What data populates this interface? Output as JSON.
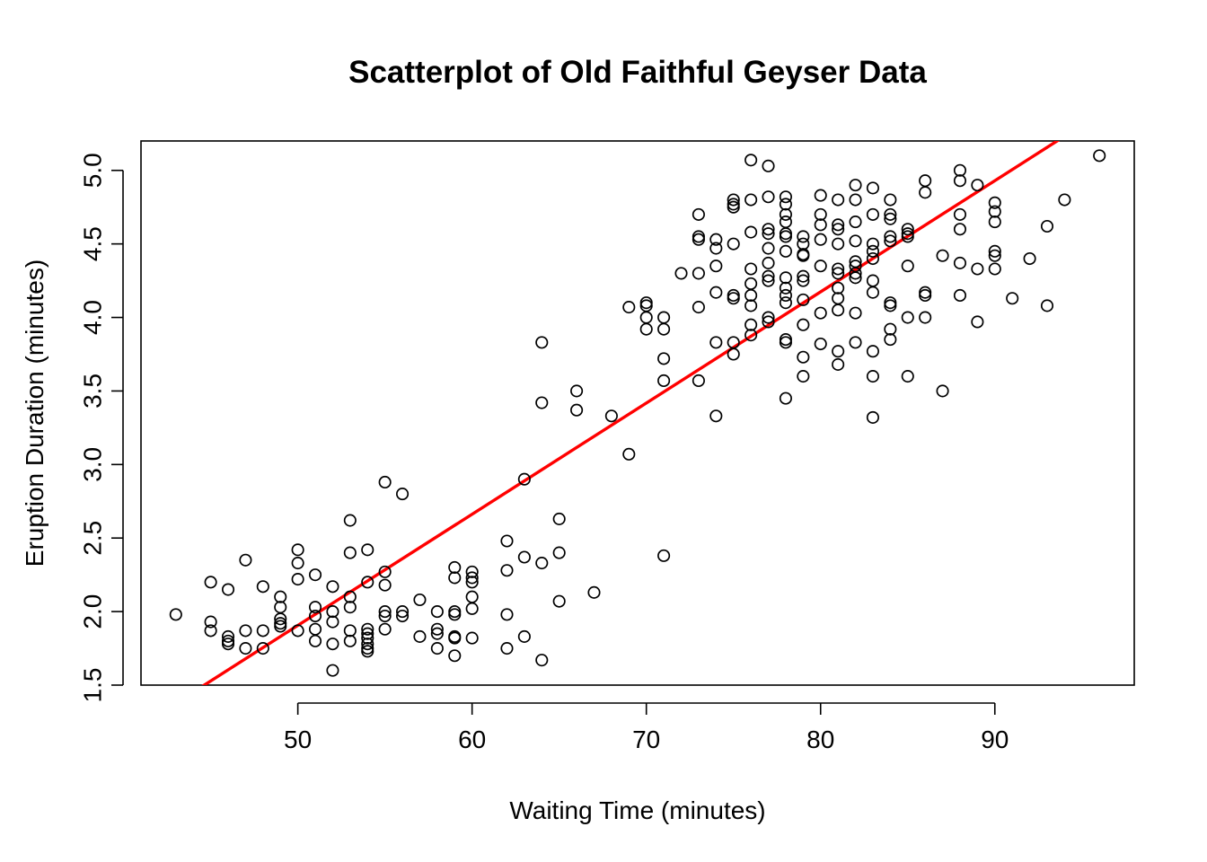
{
  "chart_data": {
    "type": "scatter",
    "title": "Scatterplot of Old Faithful Geyser Data",
    "xlabel": "Waiting Time (minutes)",
    "ylabel": "Eruption Duration (minutes)",
    "xlim": [
      41,
      98
    ],
    "ylim": [
      1.5,
      5.2
    ],
    "x_ticks": [
      50,
      60,
      70,
      80,
      90
    ],
    "x_tick_labels": [
      "50",
      "60",
      "70",
      "80",
      "90"
    ],
    "y_ticks": [
      1.5,
      2.0,
      2.5,
      3.0,
      3.5,
      4.0,
      4.5,
      5.0
    ],
    "y_tick_labels": [
      "1.5",
      "2.0",
      "2.5",
      "3.0",
      "3.5",
      "4.0",
      "4.5",
      "5.0"
    ],
    "grid": false,
    "regression_line": {
      "intercept": -1.874,
      "slope": 0.0756,
      "color": "#ff0000"
    },
    "points": [
      [
        43,
        1.98
      ],
      [
        45,
        2.2
      ],
      [
        45,
        1.93
      ],
      [
        45,
        1.87
      ],
      [
        46,
        2.15
      ],
      [
        46,
        1.83
      ],
      [
        46,
        1.8
      ],
      [
        46,
        1.78
      ],
      [
        47,
        2.35
      ],
      [
        47,
        1.87
      ],
      [
        47,
        1.75
      ],
      [
        48,
        2.17
      ],
      [
        48,
        1.87
      ],
      [
        48,
        1.75
      ],
      [
        49,
        2.1
      ],
      [
        49,
        2.03
      ],
      [
        49,
        1.95
      ],
      [
        49,
        1.92
      ],
      [
        49,
        1.9
      ],
      [
        50,
        2.42
      ],
      [
        50,
        2.33
      ],
      [
        50,
        2.22
      ],
      [
        50,
        1.87
      ],
      [
        51,
        2.25
      ],
      [
        51,
        2.03
      ],
      [
        51,
        1.97
      ],
      [
        51,
        1.88
      ],
      [
        51,
        1.8
      ],
      [
        52,
        2.17
      ],
      [
        52,
        2.0
      ],
      [
        52,
        1.93
      ],
      [
        52,
        1.78
      ],
      [
        52,
        1.6
      ],
      [
        53,
        2.62
      ],
      [
        53,
        2.4
      ],
      [
        53,
        2.1
      ],
      [
        53,
        2.03
      ],
      [
        53,
        1.87
      ],
      [
        53,
        1.8
      ],
      [
        54,
        2.42
      ],
      [
        54,
        2.2
      ],
      [
        54,
        1.88
      ],
      [
        54,
        1.85
      ],
      [
        54,
        1.82
      ],
      [
        54,
        1.78
      ],
      [
        54,
        1.75
      ],
      [
        54,
        1.73
      ],
      [
        55,
        2.88
      ],
      [
        55,
        2.27
      ],
      [
        55,
        2.18
      ],
      [
        55,
        2.0
      ],
      [
        55,
        1.97
      ],
      [
        55,
        1.88
      ],
      [
        56,
        2.8
      ],
      [
        56,
        2.0
      ],
      [
        56,
        1.97
      ],
      [
        57,
        2.08
      ],
      [
        57,
        1.83
      ],
      [
        58,
        2.0
      ],
      [
        58,
        1.88
      ],
      [
        58,
        1.85
      ],
      [
        58,
        1.75
      ],
      [
        59,
        2.3
      ],
      [
        59,
        2.23
      ],
      [
        59,
        2.0
      ],
      [
        59,
        1.98
      ],
      [
        59,
        1.83
      ],
      [
        59,
        1.82
      ],
      [
        59,
        1.7
      ],
      [
        60,
        2.27
      ],
      [
        60,
        2.23
      ],
      [
        60,
        2.2
      ],
      [
        60,
        2.1
      ],
      [
        60,
        2.02
      ],
      [
        60,
        1.82
      ],
      [
        62,
        2.48
      ],
      [
        62,
        2.28
      ],
      [
        62,
        1.98
      ],
      [
        62,
        1.75
      ],
      [
        63,
        2.9
      ],
      [
        63,
        2.37
      ],
      [
        63,
        1.83
      ],
      [
        64,
        3.83
      ],
      [
        64,
        3.42
      ],
      [
        64,
        2.33
      ],
      [
        64,
        1.67
      ],
      [
        65,
        2.63
      ],
      [
        65,
        2.4
      ],
      [
        65,
        2.07
      ],
      [
        66,
        3.5
      ],
      [
        66,
        3.37
      ],
      [
        67,
        2.13
      ],
      [
        68,
        3.33
      ],
      [
        69,
        4.07
      ],
      [
        69,
        3.07
      ],
      [
        70,
        4.1
      ],
      [
        70,
        4.08
      ],
      [
        70,
        4.0
      ],
      [
        70,
        3.92
      ],
      [
        71,
        4.0
      ],
      [
        71,
        3.92
      ],
      [
        71,
        3.72
      ],
      [
        71,
        3.57
      ],
      [
        71,
        2.38
      ],
      [
        72,
        4.3
      ],
      [
        73,
        4.7
      ],
      [
        73,
        4.55
      ],
      [
        73,
        4.53
      ],
      [
        73,
        4.3
      ],
      [
        73,
        4.07
      ],
      [
        73,
        3.57
      ],
      [
        74,
        4.53
      ],
      [
        74,
        4.47
      ],
      [
        74,
        4.35
      ],
      [
        74,
        4.17
      ],
      [
        74,
        3.83
      ],
      [
        74,
        3.33
      ],
      [
        75,
        4.8
      ],
      [
        75,
        4.77
      ],
      [
        75,
        4.75
      ],
      [
        75,
        4.5
      ],
      [
        75,
        4.15
      ],
      [
        75,
        4.13
      ],
      [
        75,
        3.83
      ],
      [
        75,
        3.75
      ],
      [
        76,
        5.07
      ],
      [
        76,
        4.8
      ],
      [
        76,
        4.58
      ],
      [
        76,
        4.33
      ],
      [
        76,
        4.23
      ],
      [
        76,
        4.15
      ],
      [
        76,
        4.08
      ],
      [
        76,
        3.95
      ],
      [
        76,
        3.88
      ],
      [
        77,
        5.03
      ],
      [
        77,
        4.82
      ],
      [
        77,
        4.6
      ],
      [
        77,
        4.57
      ],
      [
        77,
        4.47
      ],
      [
        77,
        4.37
      ],
      [
        77,
        4.28
      ],
      [
        77,
        4.25
      ],
      [
        77,
        4.0
      ],
      [
        77,
        3.97
      ],
      [
        78,
        4.82
      ],
      [
        78,
        4.77
      ],
      [
        78,
        4.7
      ],
      [
        78,
        4.65
      ],
      [
        78,
        4.57
      ],
      [
        78,
        4.55
      ],
      [
        78,
        4.45
      ],
      [
        78,
        4.27
      ],
      [
        78,
        4.2
      ],
      [
        78,
        4.15
      ],
      [
        78,
        4.1
      ],
      [
        78,
        3.85
      ],
      [
        78,
        3.83
      ],
      [
        78,
        3.45
      ],
      [
        79,
        4.55
      ],
      [
        79,
        4.5
      ],
      [
        79,
        4.43
      ],
      [
        79,
        4.42
      ],
      [
        79,
        4.28
      ],
      [
        79,
        4.25
      ],
      [
        79,
        4.12
      ],
      [
        79,
        3.95
      ],
      [
        79,
        3.73
      ],
      [
        79,
        3.6
      ],
      [
        80,
        4.83
      ],
      [
        80,
        4.7
      ],
      [
        80,
        4.63
      ],
      [
        80,
        4.53
      ],
      [
        80,
        4.35
      ],
      [
        80,
        4.03
      ],
      [
        80,
        3.82
      ],
      [
        81,
        4.8
      ],
      [
        81,
        4.63
      ],
      [
        81,
        4.6
      ],
      [
        81,
        4.5
      ],
      [
        81,
        4.33
      ],
      [
        81,
        4.3
      ],
      [
        81,
        4.2
      ],
      [
        81,
        4.13
      ],
      [
        81,
        4.05
      ],
      [
        81,
        3.77
      ],
      [
        81,
        3.68
      ],
      [
        82,
        4.9
      ],
      [
        82,
        4.8
      ],
      [
        82,
        4.65
      ],
      [
        82,
        4.52
      ],
      [
        82,
        4.38
      ],
      [
        82,
        4.35
      ],
      [
        82,
        4.3
      ],
      [
        82,
        4.27
      ],
      [
        82,
        4.03
      ],
      [
        82,
        3.83
      ],
      [
        83,
        4.88
      ],
      [
        83,
        4.7
      ],
      [
        83,
        4.5
      ],
      [
        83,
        4.45
      ],
      [
        83,
        4.4
      ],
      [
        83,
        4.25
      ],
      [
        83,
        4.17
      ],
      [
        83,
        3.77
      ],
      [
        83,
        3.6
      ],
      [
        83,
        3.32
      ],
      [
        84,
        4.8
      ],
      [
        84,
        4.7
      ],
      [
        84,
        4.67
      ],
      [
        84,
        4.55
      ],
      [
        84,
        4.52
      ],
      [
        84,
        4.1
      ],
      [
        84,
        4.08
      ],
      [
        84,
        3.92
      ],
      [
        84,
        3.85
      ],
      [
        85,
        4.6
      ],
      [
        85,
        4.57
      ],
      [
        85,
        4.55
      ],
      [
        85,
        4.35
      ],
      [
        85,
        4.0
      ],
      [
        85,
        3.6
      ],
      [
        86,
        4.93
      ],
      [
        86,
        4.85
      ],
      [
        86,
        4.17
      ],
      [
        86,
        4.15
      ],
      [
        86,
        4.0
      ],
      [
        87,
        4.42
      ],
      [
        87,
        3.5
      ],
      [
        88,
        5.0
      ],
      [
        88,
        4.93
      ],
      [
        88,
        4.7
      ],
      [
        88,
        4.6
      ],
      [
        88,
        4.37
      ],
      [
        88,
        4.15
      ],
      [
        89,
        4.9
      ],
      [
        89,
        4.33
      ],
      [
        89,
        3.97
      ],
      [
        90,
        4.78
      ],
      [
        90,
        4.72
      ],
      [
        90,
        4.65
      ],
      [
        90,
        4.45
      ],
      [
        90,
        4.42
      ],
      [
        90,
        4.33
      ],
      [
        91,
        4.13
      ],
      [
        92,
        4.4
      ],
      [
        93,
        4.62
      ],
      [
        93,
        4.08
      ],
      [
        94,
        4.8
      ],
      [
        96,
        5.1
      ]
    ]
  }
}
